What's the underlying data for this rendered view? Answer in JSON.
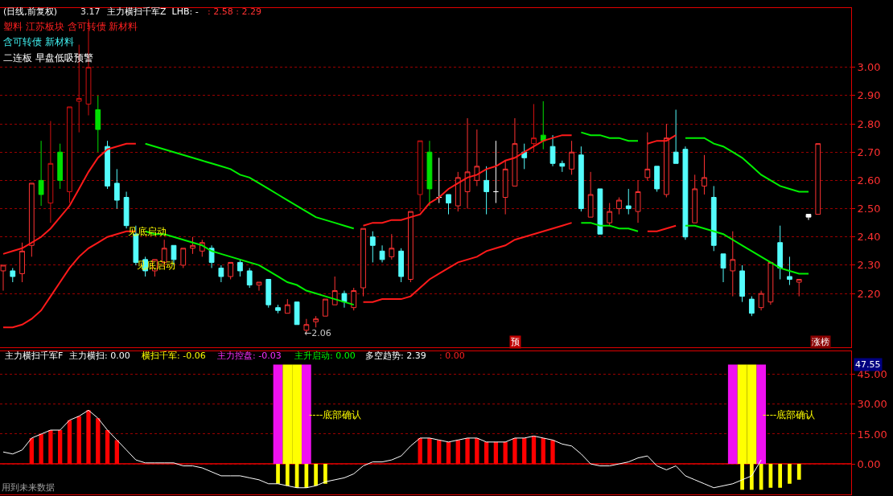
{
  "chart_data": [
    {
      "type": "candlestick",
      "categories": [
        null,
        null,
        null,
        null,
        null,
        null,
        null,
        null,
        null,
        null,
        null,
        null,
        null,
        null,
        null,
        null,
        null,
        null,
        null,
        null,
        null,
        null,
        null,
        null,
        null,
        null,
        null,
        null,
        null,
        null,
        null,
        null,
        null,
        null,
        null,
        null,
        null,
        null,
        null,
        null,
        null,
        null,
        null,
        null,
        null,
        null,
        null,
        null,
        null,
        null,
        null,
        null,
        null,
        null,
        null,
        null,
        null,
        null,
        null,
        null,
        null,
        null,
        null,
        null,
        null,
        null,
        null,
        null,
        null,
        null,
        null,
        null,
        null,
        null,
        null,
        null,
        null,
        null,
        null,
        null,
        null,
        null,
        null,
        null,
        null,
        null,
        null
      ],
      "ohlc": [
        [
          2.28,
          2.3,
          2.21,
          2.3
        ],
        [
          2.28,
          2.29,
          2.24,
          2.26
        ],
        [
          2.27,
          2.38,
          2.24,
          2.35
        ],
        [
          2.37,
          2.59,
          2.33,
          2.59
        ],
        [
          2.6,
          2.74,
          2.51,
          2.55
        ],
        [
          2.52,
          2.81,
          2.45,
          2.66
        ],
        [
          2.7,
          2.73,
          2.57,
          2.6
        ],
        [
          2.56,
          2.86,
          2.52,
          2.86
        ],
        [
          2.88,
          3.08,
          2.77,
          2.89
        ],
        [
          2.87,
          3.17,
          2.83,
          3.0
        ],
        [
          2.85,
          2.9,
          2.7,
          2.78
        ],
        [
          2.72,
          2.74,
          2.57,
          2.58
        ],
        [
          2.59,
          2.64,
          2.5,
          2.53
        ],
        [
          2.54,
          2.56,
          2.43,
          2.44
        ],
        [
          2.41,
          2.44,
          2.3,
          2.31
        ],
        [
          2.32,
          2.33,
          2.26,
          2.28
        ],
        [
          2.28,
          2.32,
          2.26,
          2.32
        ],
        [
          2.31,
          2.39,
          2.29,
          2.36
        ],
        [
          2.37,
          2.37,
          2.3,
          2.32
        ],
        [
          2.3,
          2.36,
          2.29,
          2.36
        ],
        [
          2.36,
          2.4,
          2.34,
          2.37
        ],
        [
          2.35,
          2.39,
          2.33,
          2.38
        ],
        [
          2.36,
          2.37,
          2.29,
          2.31
        ],
        [
          2.29,
          2.3,
          2.24,
          2.26
        ],
        [
          2.26,
          2.31,
          2.25,
          2.31
        ],
        [
          2.31,
          2.32,
          2.26,
          2.28
        ],
        [
          2.28,
          2.29,
          2.22,
          2.23
        ],
        [
          2.23,
          2.24,
          2.21,
          2.24
        ],
        [
          2.25,
          2.25,
          2.15,
          2.16
        ],
        [
          2.15,
          2.16,
          2.13,
          2.14
        ],
        [
          2.13,
          2.18,
          2.13,
          2.16
        ],
        [
          2.17,
          2.17,
          2.09,
          2.09
        ],
        [
          2.07,
          2.11,
          2.06,
          2.09
        ],
        [
          2.1,
          2.12,
          2.08,
          2.11
        ],
        [
          2.12,
          2.18,
          2.12,
          2.18
        ],
        [
          2.16,
          2.26,
          2.16,
          2.21
        ],
        [
          2.2,
          2.21,
          2.15,
          2.17
        ],
        [
          2.15,
          2.22,
          2.14,
          2.21
        ],
        [
          2.22,
          2.43,
          2.19,
          2.43
        ],
        [
          2.4,
          2.42,
          2.31,
          2.37
        ],
        [
          2.35,
          2.37,
          2.31,
          2.32
        ],
        [
          2.33,
          2.41,
          2.32,
          2.36
        ],
        [
          2.35,
          2.36,
          2.24,
          2.26
        ],
        [
          2.25,
          2.49,
          2.24,
          2.49
        ],
        [
          2.55,
          2.74,
          2.49,
          2.74
        ],
        [
          2.7,
          2.74,
          2.51,
          2.57
        ],
        [
          2.54,
          2.68,
          2.52,
          2.54
        ],
        [
          2.55,
          2.55,
          2.48,
          2.52
        ],
        [
          2.51,
          2.63,
          2.49,
          2.61
        ],
        [
          2.56,
          2.82,
          2.5,
          2.63
        ],
        [
          2.6,
          2.78,
          2.58,
          2.65
        ],
        [
          2.6,
          2.65,
          2.48,
          2.56
        ],
        [
          2.56,
          2.74,
          2.52,
          2.56
        ],
        [
          2.54,
          2.67,
          2.48,
          2.64
        ],
        [
          2.58,
          2.82,
          2.58,
          2.73
        ],
        [
          2.7,
          2.73,
          2.64,
          2.68
        ],
        [
          2.73,
          2.87,
          2.7,
          2.75
        ],
        [
          2.76,
          2.88,
          2.71,
          2.74
        ],
        [
          2.72,
          2.76,
          2.65,
          2.66
        ],
        [
          2.66,
          2.67,
          2.63,
          2.65
        ],
        [
          2.64,
          2.74,
          2.62,
          2.7
        ],
        [
          2.69,
          2.72,
          2.49,
          2.5
        ],
        [
          2.47,
          2.63,
          2.47,
          2.55
        ],
        [
          2.57,
          2.57,
          2.41,
          2.41
        ],
        [
          2.45,
          2.52,
          2.44,
          2.49
        ],
        [
          2.5,
          2.54,
          2.48,
          2.53
        ],
        [
          2.51,
          2.57,
          2.48,
          2.5
        ],
        [
          2.49,
          2.6,
          2.45,
          2.56
        ],
        [
          2.61,
          2.77,
          2.6,
          2.64
        ],
        [
          2.65,
          2.65,
          2.56,
          2.57
        ],
        [
          2.55,
          2.8,
          2.54,
          2.75
        ],
        [
          2.7,
          2.85,
          2.66,
          2.66
        ],
        [
          2.71,
          2.72,
          2.39,
          2.4
        ],
        [
          2.45,
          2.62,
          2.45,
          2.57
        ],
        [
          2.58,
          2.69,
          2.55,
          2.61
        ],
        [
          2.54,
          2.58,
          2.35,
          2.37
        ],
        [
          2.34,
          2.34,
          2.24,
          2.29
        ],
        [
          2.28,
          2.42,
          2.19,
          2.32
        ],
        [
          2.28,
          2.3,
          2.17,
          2.19
        ],
        [
          2.18,
          2.19,
          2.12,
          2.13
        ],
        [
          2.15,
          2.21,
          2.14,
          2.2
        ],
        [
          2.17,
          2.31,
          2.16,
          2.31
        ],
        [
          2.38,
          2.44,
          2.25,
          2.29
        ],
        [
          2.26,
          2.33,
          2.23,
          2.25
        ],
        [
          2.24,
          2.25,
          2.19,
          2.25
        ],
        [
          2.48,
          2.48,
          2.46,
          2.47
        ],
        [
          2.48,
          2.73,
          2.48,
          2.73
        ]
      ],
      "colors": [
        "#ff3232",
        "#54fcfc",
        "#ff3232",
        "#ff3232",
        "#00e000",
        "#d01010",
        "#00e000",
        "#d01010",
        "#d01010",
        "#d01010",
        "#00e000",
        "#54fcfc",
        "#54fcfc",
        "#54fcfc",
        "#54fcfc",
        "#54fcfc",
        "#ff3232",
        "#ff3232",
        "#54fcfc",
        "#ff3232",
        "#ff3232",
        "#ff3232",
        "#54fcfc",
        "#54fcfc",
        "#ff3232",
        "#54fcfc",
        "#54fcfc",
        "#ff3232",
        "#54fcfc",
        "#54fcfc",
        "#ff3232",
        "#54fcfc",
        "#ff3232",
        "#ff3232",
        "#ff3232",
        "#ff3232",
        "#54fcfc",
        "#ff3232",
        "#ff3232",
        "#54fcfc",
        "#54fcfc",
        "#ff3232",
        "#54fcfc",
        "#ff3232",
        "#d01010",
        "#00e000",
        "#ffffff",
        "#54fcfc",
        "#ff3232",
        "#ff3232",
        "#ff3232",
        "#54fcfc",
        "#ffffff",
        "#ff3232",
        "#ff3232",
        "#54fcfc",
        "#d01010",
        "#00e000",
        "#54fcfc",
        "#54fcfc",
        "#ff3232",
        "#54fcfc",
        "#ff3232",
        "#54fcfc",
        "#ff3232",
        "#ff3232",
        "#54fcfc",
        "#ff3232",
        "#ff3232",
        "#54fcfc",
        "#ff3232",
        "#54fcfc",
        "#54fcfc",
        "#ff3232",
        "#ff3232",
        "#54fcfc",
        "#54fcfc",
        "#ff3232",
        "#54fcfc",
        "#54fcfc",
        "#ff3232",
        "#ff3232",
        "#54fcfc",
        "#54fcfc",
        "#ff3232",
        "#ffffff",
        "#ff3232"
      ],
      "series": [
        {
          "type": "line",
          "color": "#ff1a1a",
          "values": [
            2.34,
            2.35,
            2.36,
            2.38,
            2.4,
            2.43,
            2.47,
            2.51,
            2.57,
            2.63,
            2.68,
            2.71,
            2.72,
            2.73,
            2.73,
            null,
            null,
            null,
            null,
            null,
            null,
            null,
            null,
            null,
            null,
            null,
            null,
            null,
            null,
            null,
            null,
            null,
            null,
            null,
            null,
            null,
            null,
            null,
            2.44,
            2.45,
            2.45,
            2.46,
            2.46,
            2.47,
            2.48,
            2.52,
            2.54,
            2.57,
            2.59,
            2.61,
            2.62,
            2.64,
            2.65,
            2.67,
            2.68,
            2.7,
            2.72,
            2.74,
            2.75,
            2.76,
            2.76,
            null,
            null,
            null,
            null,
            null,
            null,
            null,
            2.73,
            2.74,
            2.74,
            2.76,
            null,
            null,
            null,
            null,
            null,
            null,
            null,
            null,
            null,
            null,
            null,
            null,
            null,
            null,
            null
          ]
        },
        {
          "type": "line",
          "color": "#00f000",
          "values": [
            null,
            null,
            null,
            null,
            null,
            null,
            null,
            null,
            null,
            null,
            null,
            null,
            null,
            null,
            null,
            2.73,
            2.72,
            2.71,
            2.7,
            2.69,
            2.68,
            2.67,
            2.66,
            2.65,
            2.64,
            2.62,
            2.61,
            2.59,
            2.57,
            2.55,
            2.53,
            2.51,
            2.49,
            2.47,
            2.46,
            2.45,
            2.44,
            2.43,
            null,
            null,
            null,
            null,
            null,
            null,
            null,
            null,
            null,
            null,
            null,
            null,
            null,
            null,
            null,
            null,
            null,
            null,
            null,
            null,
            null,
            null,
            null,
            2.77,
            2.76,
            2.76,
            2.75,
            2.75,
            2.74,
            2.74,
            null,
            null,
            null,
            null,
            2.75,
            2.75,
            2.75,
            2.73,
            2.72,
            2.7,
            2.68,
            2.65,
            2.62,
            2.6,
            2.58,
            2.57,
            2.56,
            2.56,
            null
          ]
        },
        {
          "type": "line",
          "color": "#ff1a1a",
          "values": [
            2.08,
            2.08,
            2.09,
            2.11,
            2.14,
            2.19,
            2.24,
            2.29,
            2.33,
            2.36,
            2.38,
            2.4,
            2.41,
            2.42,
            2.42,
            null,
            null,
            null,
            null,
            null,
            null,
            null,
            null,
            null,
            null,
            null,
            null,
            null,
            null,
            null,
            null,
            null,
            null,
            null,
            null,
            null,
            null,
            null,
            2.17,
            2.17,
            2.18,
            2.18,
            2.18,
            2.19,
            2.22,
            2.25,
            2.27,
            2.29,
            2.31,
            2.32,
            2.33,
            2.35,
            2.36,
            2.37,
            2.39,
            2.4,
            2.41,
            2.42,
            2.43,
            2.44,
            2.45,
            null,
            null,
            null,
            null,
            null,
            null,
            null,
            2.42,
            2.42,
            2.43,
            2.44,
            null,
            null,
            null,
            null,
            null,
            null,
            null,
            null,
            null,
            null,
            null,
            null,
            null,
            null,
            null
          ]
        },
        {
          "type": "line",
          "color": "#00f000",
          "values": [
            null,
            null,
            null,
            null,
            null,
            null,
            null,
            null,
            null,
            null,
            null,
            null,
            null,
            null,
            null,
            2.42,
            2.41,
            2.41,
            2.4,
            2.39,
            2.38,
            2.37,
            2.35,
            2.34,
            2.33,
            2.32,
            2.31,
            2.3,
            2.28,
            2.26,
            2.24,
            2.23,
            2.21,
            2.2,
            2.19,
            2.18,
            2.17,
            2.16,
            null,
            null,
            null,
            null,
            null,
            null,
            null,
            null,
            null,
            null,
            null,
            null,
            null,
            null,
            null,
            null,
            null,
            null,
            null,
            null,
            null,
            null,
            null,
            2.45,
            2.45,
            2.44,
            2.44,
            2.43,
            2.43,
            2.42,
            null,
            null,
            null,
            null,
            2.44,
            2.44,
            2.43,
            2.42,
            2.41,
            2.39,
            2.37,
            2.35,
            2.33,
            2.31,
            2.29,
            2.28,
            2.27,
            2.27,
            null
          ]
        }
      ],
      "ylim": [
        2.01,
        3.21
      ],
      "yticks": [
        {
          "value": 2.2,
          "label": "2.20"
        },
        {
          "value": 2.3,
          "label": "2.30"
        },
        {
          "value": 2.4,
          "label": "2.40"
        },
        {
          "value": 2.5,
          "label": "2.50"
        },
        {
          "value": 2.6,
          "label": "2.60"
        },
        {
          "value": 2.7,
          "label": "2.70"
        },
        {
          "value": 2.8,
          "label": "2.80"
        },
        {
          "value": 2.9,
          "label": "2.90"
        },
        {
          "value": 3.0,
          "label": "3.00"
        }
      ],
      "grid": "y",
      "tick_labels": "y",
      "annotations": [
        "(日线,前复权)",
        "3.17",
        "主力横扫千军Z  LHB: -",
        ": 2.58 : 2.29",
        "塑料 江苏板块 含可转债 新材料",
        "含可转债 新材料",
        "二连板 早盘低吸预警",
        "见底启动",
        "见底启动",
        "←2.06",
        "预",
        "涨榜"
      ]
    },
    {
      "type": "bar",
      "categories": [
        null,
        null,
        null,
        null,
        null,
        null,
        null,
        null,
        null,
        null,
        null,
        null,
        null,
        null,
        null,
        null,
        null,
        null,
        null,
        null,
        null,
        null,
        null,
        null,
        null,
        null,
        null,
        null,
        null,
        null,
        null,
        null,
        null,
        null,
        null,
        null,
        null,
        null,
        null,
        null,
        null,
        null,
        null,
        null,
        null,
        null,
        null,
        null,
        null,
        null,
        null,
        null,
        null,
        null,
        null,
        null,
        null,
        null,
        null,
        null,
        null,
        null,
        null,
        null,
        null,
        null,
        null,
        null,
        null,
        null,
        null,
        null,
        null,
        null,
        null,
        null,
        null,
        null,
        null,
        null,
        null,
        null,
        null,
        null,
        null,
        null,
        null
      ],
      "series": [
        {
          "type": "bar",
          "color": "#ff0000",
          "values": [
            null,
            null,
            null,
            13,
            15,
            17,
            17,
            22,
            24,
            27,
            23,
            17,
            12,
            null,
            null,
            null,
            null,
            null,
            null,
            null,
            null,
            null,
            null,
            null,
            null,
            null,
            null,
            null,
            null,
            null,
            null,
            null,
            null,
            null,
            null,
            null,
            null,
            null,
            null,
            null,
            null,
            null,
            null,
            null,
            13,
            13,
            12,
            11,
            12,
            13,
            13,
            11,
            11,
            11,
            13,
            13,
            14,
            13,
            12,
            null,
            null,
            null,
            null,
            null,
            null,
            null,
            null,
            null,
            null,
            null,
            null,
            null,
            null,
            null,
            null,
            null,
            null,
            null,
            null,
            null,
            null,
            null,
            null,
            null,
            null,
            null,
            null
          ]
        },
        {
          "type": "bar",
          "color": "#f010f0",
          "values": [
            null,
            null,
            null,
            null,
            null,
            null,
            null,
            null,
            null,
            null,
            null,
            null,
            null,
            null,
            null,
            null,
            null,
            null,
            null,
            null,
            null,
            null,
            null,
            null,
            null,
            null,
            null,
            null,
            null,
            50,
            null,
            null,
            50,
            null,
            null,
            null,
            null,
            null,
            null,
            null,
            null,
            null,
            null,
            null,
            null,
            null,
            null,
            null,
            null,
            null,
            null,
            null,
            null,
            null,
            null,
            null,
            null,
            null,
            null,
            null,
            null,
            null,
            null,
            null,
            null,
            null,
            null,
            null,
            null,
            null,
            null,
            null,
            null,
            null,
            null,
            null,
            null,
            50,
            null,
            null,
            50,
            null,
            null,
            null,
            null,
            null,
            null
          ]
        },
        {
          "type": "bar",
          "color": "#ffff00",
          "values": [
            null,
            null,
            null,
            null,
            null,
            null,
            null,
            null,
            null,
            null,
            null,
            null,
            null,
            null,
            null,
            null,
            null,
            null,
            null,
            null,
            null,
            null,
            null,
            null,
            null,
            null,
            null,
            null,
            null,
            null,
            50,
            50,
            null,
            null,
            null,
            null,
            null,
            null,
            null,
            null,
            null,
            null,
            null,
            null,
            null,
            null,
            null,
            null,
            null,
            null,
            null,
            null,
            null,
            null,
            null,
            null,
            null,
            null,
            null,
            null,
            null,
            null,
            null,
            null,
            null,
            null,
            null,
            null,
            null,
            null,
            null,
            null,
            null,
            null,
            null,
            null,
            null,
            null,
            50,
            50,
            null,
            null,
            null,
            null,
            null,
            null,
            null
          ]
        },
        {
          "type": "bar",
          "color": "#ffff00",
          "values": [
            null,
            null,
            null,
            null,
            null,
            null,
            null,
            null,
            null,
            null,
            null,
            null,
            null,
            null,
            null,
            null,
            null,
            null,
            null,
            null,
            null,
            null,
            null,
            null,
            null,
            null,
            null,
            null,
            null,
            -10,
            -11,
            -12,
            -12,
            -11,
            -10,
            null,
            null,
            null,
            null,
            null,
            null,
            null,
            null,
            null,
            null,
            null,
            null,
            null,
            null,
            null,
            null,
            null,
            null,
            null,
            null,
            null,
            null,
            null,
            null,
            null,
            null,
            null,
            null,
            null,
            null,
            null,
            null,
            null,
            null,
            null,
            null,
            null,
            null,
            null,
            null,
            null,
            null,
            null,
            -13,
            -13,
            -13,
            -12,
            -12,
            -10,
            -8,
            null,
            null
          ]
        },
        {
          "type": "line",
          "color": "#ffffff",
          "values": [
            6,
            5,
            7,
            13,
            15,
            17,
            17,
            22,
            24,
            27,
            23,
            17,
            12,
            7,
            2,
            0.5,
            0.5,
            0.5,
            0.5,
            -1,
            -1,
            -2,
            -4,
            -6,
            -6,
            -6,
            -7,
            -8,
            -10,
            -10,
            -11,
            -12,
            -12,
            -11,
            -9,
            -8,
            -7,
            -5,
            -1,
            1,
            1,
            2,
            4,
            9,
            13,
            13,
            12,
            11,
            12,
            13,
            13,
            11,
            11,
            11,
            13,
            13,
            14,
            13,
            12,
            10,
            9,
            5,
            0,
            -1,
            -1,
            0,
            1,
            3,
            4,
            -1,
            -3,
            -1,
            -6,
            -8,
            -10,
            -12,
            -11,
            -10,
            -8,
            -6,
            2,
            null,
            null,
            null,
            null,
            null,
            null
          ]
        }
      ],
      "ylim": [
        -15.4,
        56.7
      ],
      "ref_lines": [
        {
          "axis": "y",
          "value": 0,
          "color": "#ff0000"
        }
      ],
      "yticks": [
        {
          "value": 0,
          "label": "0.00"
        },
        {
          "value": 15,
          "label": "15.00"
        },
        {
          "value": 30,
          "label": "30.00"
        },
        {
          "value": 45,
          "label": "45.00"
        }
      ],
      "grid": "y",
      "tick_labels": "y",
      "annotations": [
        "主力横扫千军F",
        "主力横扫: 0.00",
        "横扫千军: -0.06",
        "主力控盘: -0.03",
        "主升启动: 0.00",
        "多空趋势: 2.39",
        ": 0.00",
        "----底部确认",
        "----底部确认",
        "用到未来数据",
        "47.55"
      ]
    }
  ]
}
